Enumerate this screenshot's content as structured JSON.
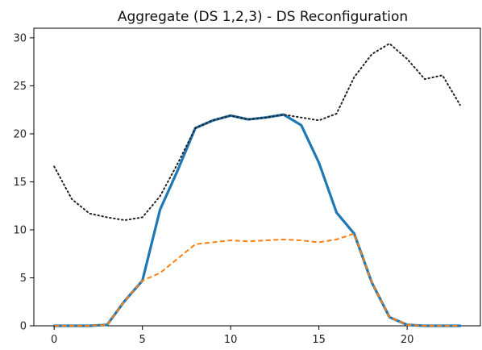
{
  "chart_data": {
    "type": "line",
    "title": "Aggregate (DS 1,2,3) - DS Reconfiguration",
    "xlabel": "",
    "ylabel": "",
    "xlim": [
      -1.15,
      24.15
    ],
    "ylim": [
      0,
      31
    ],
    "xticks": [
      0,
      5,
      10,
      15,
      20
    ],
    "yticks": [
      0,
      5,
      10,
      15,
      20,
      25,
      30
    ],
    "grid": false,
    "legend": "none",
    "series": [
      {
        "style": "solid",
        "color": "#1f77b4",
        "x": [
          0,
          1,
          2,
          3,
          4,
          5,
          6,
          7,
          8,
          9,
          10,
          11,
          12,
          13,
          14,
          15,
          16,
          17,
          18,
          19,
          20,
          21,
          22,
          23
        ],
        "values": [
          0,
          0,
          0,
          0.1,
          2.6,
          4.7,
          12.1,
          16.2,
          20.6,
          21.4,
          21.9,
          21.5,
          21.7,
          22.0,
          20.9,
          17.0,
          11.8,
          9.6,
          4.5,
          0.9,
          0.1,
          0,
          0,
          0
        ]
      },
      {
        "style": "dashed",
        "color": "#ff7f0e",
        "x": [
          0,
          1,
          2,
          3,
          4,
          5,
          6,
          7,
          8,
          9,
          10,
          11,
          12,
          13,
          14,
          15,
          16,
          17,
          18,
          19,
          20,
          21,
          22,
          23
        ],
        "values": [
          0,
          0,
          0,
          0.1,
          2.6,
          4.7,
          5.5,
          7.0,
          8.5,
          8.7,
          8.9,
          8.8,
          8.9,
          9.0,
          8.9,
          8.7,
          9.0,
          9.6,
          4.5,
          0.9,
          0.1,
          0,
          0,
          0
        ]
      },
      {
        "style": "dotted",
        "color": "#222222",
        "x": [
          0,
          1,
          2,
          3,
          4,
          5,
          6,
          7,
          8,
          9,
          10,
          11,
          12,
          13,
          14,
          15,
          16,
          17,
          18,
          19,
          20,
          21,
          22,
          23
        ],
        "values": [
          16.6,
          13.2,
          11.7,
          11.3,
          11.0,
          11.3,
          13.5,
          16.9,
          20.6,
          21.4,
          21.9,
          21.5,
          21.7,
          22.0,
          21.7,
          21.4,
          22.1,
          25.9,
          28.3,
          29.4,
          27.8,
          25.7,
          26.1,
          23.0
        ]
      }
    ]
  }
}
